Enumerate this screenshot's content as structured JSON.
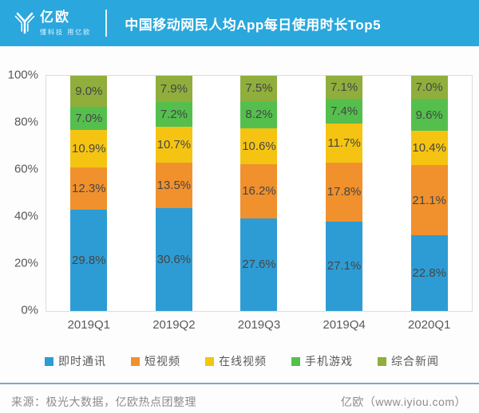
{
  "header": {
    "logo_text": "亿欧",
    "logo_tagline": "懂科技 用亿欧",
    "title": "中国移动网民人均App每日使用时长Top5"
  },
  "chart_data": {
    "type": "bar",
    "stacked": true,
    "normalized_to_100_percent": true,
    "title": "中国移动网民人均App每日使用时长Top5",
    "categories": [
      "2019Q1",
      "2019Q2",
      "2019Q3",
      "2019Q4",
      "2020Q1"
    ],
    "series": [
      {
        "name": "即时通讯",
        "color": "#2E9CD4",
        "values": [
          29.8,
          30.6,
          27.6,
          27.1,
          22.8
        ]
      },
      {
        "name": "短视频",
        "color": "#F0912D",
        "values": [
          12.3,
          13.5,
          16.2,
          17.8,
          21.1
        ]
      },
      {
        "name": "在线视频",
        "color": "#F5C412",
        "values": [
          10.9,
          10.7,
          10.6,
          11.7,
          10.4
        ]
      },
      {
        "name": "手机游戏",
        "color": "#55BF4E",
        "values": [
          7.0,
          7.2,
          8.2,
          7.4,
          9.6
        ]
      },
      {
        "name": "综合新闻",
        "color": "#8FAE3C",
        "values": [
          9.0,
          7.9,
          7.5,
          7.1,
          7.0
        ]
      }
    ],
    "yticks": [
      "0%",
      "20%",
      "40%",
      "60%",
      "80%",
      "100%"
    ],
    "ylim": [
      0,
      100
    ],
    "value_suffix": "%",
    "value_decimals": 1,
    "legend_position": "bottom",
    "grid": false
  },
  "footer": {
    "source": "来源：极光大数据，亿欧热点团整理",
    "credit": "亿欧（www.iyiou.com）"
  },
  "colors": {
    "header_bg": "#2AA7DD",
    "footer_rule": "#74AFC4"
  }
}
